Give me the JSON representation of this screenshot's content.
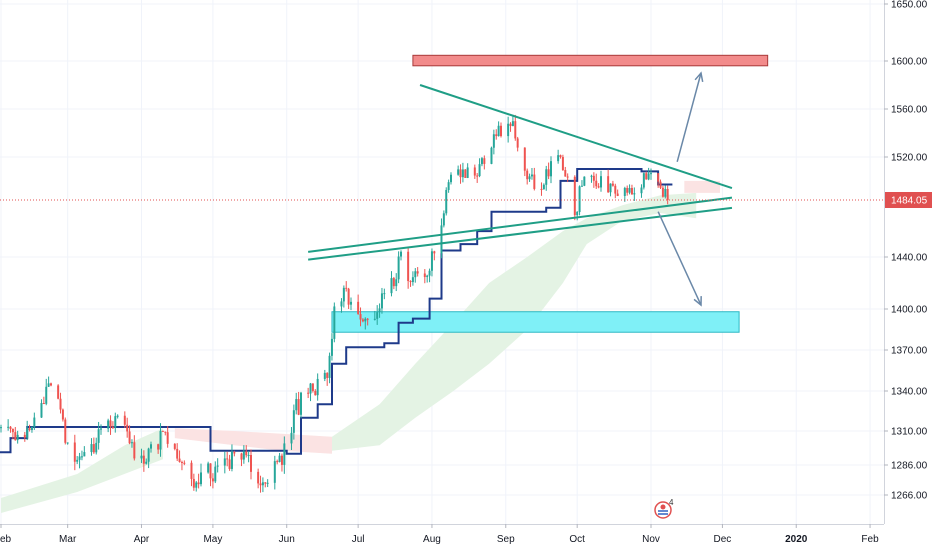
{
  "chart_data": {
    "type": "candlestick",
    "title": "",
    "xlabel": "",
    "ylabel": "",
    "y_axis": {
      "side": "right",
      "ticks": [
        {
          "value": 1650,
          "label": "1650.00"
        },
        {
          "value": 1600,
          "label": "1600.00"
        },
        {
          "value": 1560,
          "label": "1560.00"
        },
        {
          "value": 1520,
          "label": "1520.00"
        },
        {
          "value": 1484.05,
          "label": "1484.05",
          "highlight": true
        },
        {
          "value": 1440,
          "label": "1440.00"
        },
        {
          "value": 1400,
          "label": "1400.00"
        },
        {
          "value": 1370,
          "label": "1370.00"
        },
        {
          "value": 1340,
          "label": "1340.00"
        },
        {
          "value": 1310,
          "label": "1310.00"
        },
        {
          "value": 1286,
          "label": "1286.00"
        },
        {
          "value": 1266,
          "label": "1266.00"
        }
      ]
    },
    "x_axis": {
      "ticks": [
        {
          "label": "eb",
          "date": "2019-02-01"
        },
        {
          "label": "Mar",
          "date": "2019-03-01"
        },
        {
          "label": "Apr",
          "date": "2019-04-01"
        },
        {
          "label": "May",
          "date": "2019-05-01"
        },
        {
          "label": "Jun",
          "date": "2019-06-01"
        },
        {
          "label": "Jul",
          "date": "2019-07-01"
        },
        {
          "label": "Aug",
          "date": "2019-08-01"
        },
        {
          "label": "Sep",
          "date": "2019-09-01"
        },
        {
          "label": "Oct",
          "date": "2019-10-01"
        },
        {
          "label": "Nov",
          "date": "2019-11-01"
        },
        {
          "label": "Dec",
          "date": "2019-12-01"
        },
        {
          "label": "2020",
          "date": "2020-01-01",
          "bold": true
        },
        {
          "label": "Feb",
          "date": "2020-02-01"
        }
      ]
    },
    "last_price": 1484.05,
    "colors": {
      "up": "#26a69a",
      "down": "#ef5350",
      "baseline": "#1e3a8a",
      "triangle": "#1f9e86",
      "arrow": "#6a88a8",
      "resistance_zone": "#f28b8b",
      "support_zone": "#7ff0f7",
      "cloud_bull": "#e4f3e4",
      "cloud_bear": "#fbe3e3",
      "price_line": "#e05050"
    },
    "price_path": [
      [
        "2019-01-28",
        1318
      ],
      [
        "2019-02-05",
        1312
      ],
      [
        "2019-02-12",
        1306
      ],
      [
        "2019-02-18",
        1328
      ],
      [
        "2019-02-21",
        1340
      ],
      [
        "2019-02-26",
        1325
      ],
      [
        "2019-03-01",
        1294
      ],
      [
        "2019-03-06",
        1288
      ],
      [
        "2019-03-12",
        1300
      ],
      [
        "2019-03-18",
        1310
      ],
      [
        "2019-03-25",
        1318
      ],
      [
        "2019-03-29",
        1298
      ],
      [
        "2019-04-04",
        1292
      ],
      [
        "2019-04-10",
        1305
      ],
      [
        "2019-04-15",
        1290
      ],
      [
        "2019-04-22",
        1278
      ],
      [
        "2019-04-29",
        1280
      ],
      [
        "2019-05-06",
        1284
      ],
      [
        "2019-05-13",
        1296
      ],
      [
        "2019-05-20",
        1280
      ],
      [
        "2019-05-27",
        1283
      ],
      [
        "2019-06-01",
        1300
      ],
      [
        "2019-06-05",
        1328
      ],
      [
        "2019-06-12",
        1340
      ],
      [
        "2019-06-18",
        1348
      ],
      [
        "2019-06-21",
        1395
      ],
      [
        "2019-06-25",
        1420
      ],
      [
        "2019-07-01",
        1392
      ],
      [
        "2019-07-08",
        1400
      ],
      [
        "2019-07-15",
        1418
      ],
      [
        "2019-07-19",
        1440
      ],
      [
        "2019-07-24",
        1420
      ],
      [
        "2019-07-31",
        1428
      ],
      [
        "2019-08-05",
        1470
      ],
      [
        "2019-08-08",
        1500
      ],
      [
        "2019-08-13",
        1510
      ],
      [
        "2019-08-20",
        1502
      ],
      [
        "2019-08-26",
        1535
      ],
      [
        "2019-09-04",
        1550
      ],
      [
        "2019-09-10",
        1500
      ],
      [
        "2019-09-17",
        1500
      ],
      [
        "2019-09-24",
        1525
      ],
      [
        "2019-09-30",
        1470
      ],
      [
        "2019-10-04",
        1505
      ],
      [
        "2019-10-10",
        1498
      ],
      [
        "2019-10-16",
        1490
      ],
      [
        "2019-10-22",
        1492
      ],
      [
        "2019-10-28",
        1500
      ],
      [
        "2019-11-01",
        1510
      ],
      [
        "2019-11-05",
        1490
      ],
      [
        "2019-11-08",
        1484
      ]
    ],
    "baseline_path": [
      [
        "2019-01-28",
        1295
      ],
      [
        "2019-02-05",
        1305
      ],
      [
        "2019-02-12",
        1313
      ],
      [
        "2019-04-24",
        1313
      ],
      [
        "2019-04-30",
        1296
      ],
      [
        "2019-06-01",
        1294
      ],
      [
        "2019-06-07",
        1320
      ],
      [
        "2019-06-14",
        1330
      ],
      [
        "2019-06-20",
        1360
      ],
      [
        "2019-06-26",
        1372
      ],
      [
        "2019-07-12",
        1375
      ],
      [
        "2019-07-18",
        1390
      ],
      [
        "2019-07-24",
        1393
      ],
      [
        "2019-07-31",
        1408
      ],
      [
        "2019-08-05",
        1445
      ],
      [
        "2019-08-13",
        1450
      ],
      [
        "2019-08-20",
        1460
      ],
      [
        "2019-08-26",
        1475
      ],
      [
        "2019-09-18",
        1478
      ],
      [
        "2019-09-24",
        1500
      ],
      [
        "2019-10-01",
        1510
      ],
      [
        "2019-10-28",
        1508
      ],
      [
        "2019-11-04",
        1497
      ],
      [
        "2019-11-10",
        1497
      ]
    ],
    "cloud": [
      {
        "kind": "bull",
        "polygon": [
          [
            "2019-02-01",
            1264
          ],
          [
            "2019-03-05",
            1280
          ],
          [
            "2019-03-25",
            1300
          ],
          [
            "2019-04-10",
            1312
          ],
          [
            "2019-04-10",
            1290
          ],
          [
            "2019-03-05",
            1268
          ],
          [
            "2019-02-01",
            1254
          ]
        ]
      },
      {
        "kind": "bear",
        "polygon": [
          [
            "2019-04-15",
            1312
          ],
          [
            "2019-05-10",
            1310
          ],
          [
            "2019-05-30",
            1308
          ],
          [
            "2019-06-20",
            1306
          ],
          [
            "2019-06-20",
            1294
          ],
          [
            "2019-05-30",
            1296
          ],
          [
            "2019-05-10",
            1300
          ],
          [
            "2019-04-15",
            1305
          ]
        ]
      },
      {
        "kind": "bull",
        "polygon": [
          [
            "2019-06-20",
            1306
          ],
          [
            "2019-07-10",
            1330
          ],
          [
            "2019-07-25",
            1360
          ],
          [
            "2019-08-10",
            1390
          ],
          [
            "2019-08-25",
            1420
          ],
          [
            "2019-09-10",
            1440
          ],
          [
            "2019-09-25",
            1460
          ],
          [
            "2019-10-05",
            1470
          ],
          [
            "2019-10-20",
            1480
          ],
          [
            "2019-11-05",
            1488
          ],
          [
            "2019-11-20",
            1490
          ],
          [
            "2019-11-20",
            1470
          ],
          [
            "2019-11-05",
            1474
          ],
          [
            "2019-10-20",
            1468
          ],
          [
            "2019-10-05",
            1450
          ],
          [
            "2019-09-25",
            1420
          ],
          [
            "2019-09-10",
            1385
          ],
          [
            "2019-08-25",
            1360
          ],
          [
            "2019-08-10",
            1340
          ],
          [
            "2019-07-25",
            1320
          ],
          [
            "2019-07-10",
            1300
          ],
          [
            "2019-06-20",
            1296
          ]
        ]
      },
      {
        "kind": "bear",
        "polygon": [
          [
            "2019-11-15",
            1500
          ],
          [
            "2019-11-30",
            1500
          ],
          [
            "2019-11-30",
            1490
          ],
          [
            "2019-11-15",
            1490
          ]
        ]
      }
    ],
    "annotations": {
      "resistance_zone": {
        "x0": "2019-07-24",
        "x1": "2019-12-20",
        "y0": 1596,
        "y1": 1605
      },
      "support_zone": {
        "x0": "2019-06-20",
        "x1": "2019-12-08",
        "y0": 1383,
        "y1": 1398
      },
      "triangle_upper": {
        "x0": "2019-07-27",
        "y0": 1580,
        "x1": "2019-12-05",
        "y1": 1494
      },
      "triangle_lower_1": {
        "x0": "2019-06-10",
        "y0": 1444,
        "x1": "2019-12-05",
        "y1": 1486
      },
      "triangle_lower_2": {
        "x0": "2019-06-10",
        "y0": 1438,
        "x1": "2019-12-05",
        "y1": 1478
      },
      "arrow_up": {
        "x0": "2019-11-12",
        "y0": 1516,
        "x1": "2019-11-22",
        "y1": 1590
      },
      "arrow_down": {
        "x0": "2019-11-04",
        "y0": 1475,
        "x1": "2019-11-22",
        "y1": 1403
      },
      "price_line": 1484.05
    },
    "logo": {
      "badge": "4"
    }
  }
}
